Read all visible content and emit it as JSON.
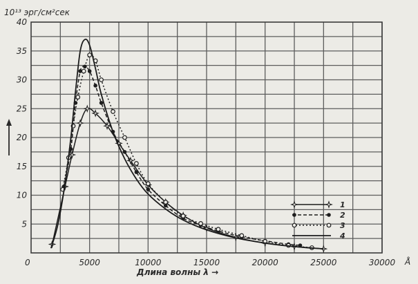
{
  "chart_data": {
    "type": "line",
    "ylabel": "10¹³ эрг/см²сек",
    "xlabel": "Длина волны  λ →",
    "x_unit": "Å",
    "xlim": [
      0,
      30000
    ],
    "ylim": [
      0,
      40
    ],
    "x_ticks": [
      {
        "v": 5000,
        "label": "5000"
      },
      {
        "v": 10000,
        "label": "10000"
      },
      {
        "v": 15000,
        "label": "15000"
      },
      {
        "v": 20000,
        "label": "20000"
      },
      {
        "v": 25000,
        "label": "25000"
      },
      {
        "v": 30000,
        "label": "30000"
      }
    ],
    "y_ticks": [
      {
        "v": 5,
        "label": "5"
      },
      {
        "v": 10,
        "label": "10"
      },
      {
        "v": 15,
        "label": "15"
      },
      {
        "v": 20,
        "label": "20"
      },
      {
        "v": 25,
        "label": "25"
      },
      {
        "v": 30,
        "label": "30"
      },
      {
        "v": 35,
        "label": "35"
      },
      {
        "v": 40,
        "label": "40"
      }
    ],
    "grid": true,
    "legend_position": "bottom-right",
    "origin_label": "0",
    "series": [
      {
        "name": "1",
        "style": "solid-star",
        "points": [
          [
            1800,
            1.5
          ],
          [
            2900,
            11.5
          ],
          [
            3500,
            17
          ],
          [
            4200,
            22.5
          ],
          [
            4800,
            25
          ],
          [
            5500,
            24.2
          ],
          [
            6500,
            22
          ],
          [
            7500,
            19
          ],
          [
            8500,
            16
          ],
          [
            10000,
            11.8
          ],
          [
            11500,
            8.8
          ],
          [
            13000,
            6.5
          ],
          [
            15000,
            4.3
          ],
          [
            17500,
            2.7
          ],
          [
            20000,
            1.7
          ],
          [
            22500,
            1.1
          ],
          [
            25000,
            0.7
          ]
        ]
      },
      {
        "name": "2",
        "style": "dashed-dot",
        "points": [
          [
            2800,
            11.5
          ],
          [
            3400,
            18
          ],
          [
            3800,
            26
          ],
          [
            4200,
            31.5
          ],
          [
            4600,
            32.3
          ],
          [
            5000,
            31.5
          ],
          [
            5500,
            29
          ],
          [
            6000,
            26
          ],
          [
            7000,
            21
          ],
          [
            8000,
            17.5
          ],
          [
            9000,
            14
          ],
          [
            10000,
            11
          ],
          [
            11500,
            8.2
          ],
          [
            13000,
            6
          ],
          [
            14500,
            4.8
          ],
          [
            16000,
            3.8
          ],
          [
            18000,
            2.8
          ],
          [
            20000,
            2.1
          ],
          [
            22000,
            1.5
          ],
          [
            23000,
            1.3
          ]
        ]
      },
      {
        "name": "3",
        "style": "dotted-circle",
        "points": [
          [
            2700,
            11
          ],
          [
            3200,
            16.5
          ],
          [
            3600,
            22
          ],
          [
            4000,
            27
          ],
          [
            4500,
            31.5
          ],
          [
            5000,
            34.3
          ],
          [
            5500,
            33.3
          ],
          [
            6000,
            30
          ],
          [
            7000,
            24.5
          ],
          [
            8000,
            20
          ],
          [
            9000,
            15.5
          ],
          [
            10000,
            12
          ],
          [
            11500,
            8.8
          ],
          [
            13000,
            6.4
          ],
          [
            14500,
            5.1
          ],
          [
            16000,
            4.1
          ],
          [
            18000,
            3
          ],
          [
            20000,
            2
          ],
          [
            22000,
            1.3
          ],
          [
            24000,
            0.9
          ]
        ]
      },
      {
        "name": "4",
        "style": "solid",
        "points": [
          [
            1700,
            0.8
          ],
          [
            2300,
            5
          ],
          [
            2900,
            12
          ],
          [
            3400,
            20
          ],
          [
            3800,
            28
          ],
          [
            4200,
            35
          ],
          [
            4600,
            37
          ],
          [
            5000,
            36
          ],
          [
            5500,
            32
          ],
          [
            6000,
            27.5
          ],
          [
            7000,
            21
          ],
          [
            8000,
            16.3
          ],
          [
            9000,
            12.8
          ],
          [
            10000,
            10.2
          ],
          [
            11500,
            7.6
          ],
          [
            13000,
            5.7
          ],
          [
            15000,
            4
          ],
          [
            17500,
            2.6
          ],
          [
            20000,
            1.7
          ],
          [
            22500,
            1.1
          ],
          [
            25000,
            0.7
          ]
        ]
      }
    ]
  }
}
